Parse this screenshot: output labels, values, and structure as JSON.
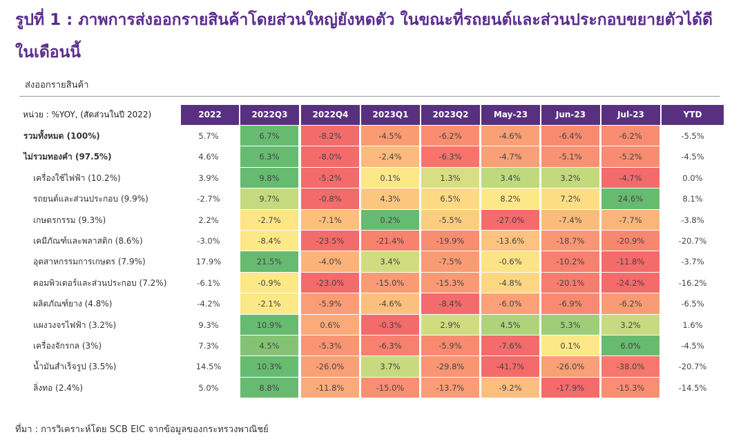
{
  "title": "รูปที่ 1 : ภาพการส่งออกรายสินค้าโดยส่วนใหญ่ยังหดตัว ในขณะที่รถยนต์และส่วนประกอบขยายตัวได้ดีในเดือนนี้",
  "subtitle": "ส่งออกรายสินค้า",
  "unit_label": "หน่วย : %YOY, (สัดส่วนในปี 2022)",
  "columns": [
    "2022",
    "2022Q3",
    "2022Q4",
    "2023Q1",
    "2023Q2",
    "May-23",
    "Jun-23",
    "Jul-23",
    "YTD"
  ],
  "rows": [
    {
      "label": "รวมทั้งหมด (100%)",
      "bold": true,
      "v2022": "5.7%",
      "cells": [
        "6.7%",
        "-8.2%",
        "-4.5%",
        "-6.2%",
        "-4.6%",
        "-6.4%",
        "-6.2%"
      ],
      "colors": [
        "#67bb71",
        "#f46b6b",
        "#fa9b74",
        "#fa8c70",
        "#f9a076",
        "#f88a70",
        "#f88d71"
      ],
      "ytd": "-5.5%"
    },
    {
      "label": "ไม่รวมทองคำ (97.5%)",
      "bold": true,
      "v2022": "4.6%",
      "cells": [
        "6.3%",
        "-8.0%",
        "-2.4%",
        "-6.3%",
        "-4.7%",
        "-5.1%",
        "-5.2%"
      ],
      "colors": [
        "#67bb71",
        "#f46b6b",
        "#fcbb7d",
        "#f8736c",
        "#f9a076",
        "#f89272",
        "#f88c70"
      ],
      "ytd": "-4.5%"
    },
    {
      "label": "เครื่องใช้ไฟฟ้า (10.2%)",
      "bold": false,
      "v2022": "3.9%",
      "cells": [
        "9.8%",
        "-5.2%",
        "0.1%",
        "1.3%",
        "3.4%",
        "3.2%",
        "-4.7%"
      ],
      "colors": [
        "#67bb71",
        "#f46b6b",
        "#fde887",
        "#d8de83",
        "#bfd97e",
        "#c3d97e",
        "#f46b6b"
      ],
      "ytd": "0.0%"
    },
    {
      "label": "รถยนต์และส่วนประกอบ (9.9%)",
      "bold": false,
      "v2022": "-2.7%",
      "cells": [
        "9.7%",
        "-0.8%",
        "4.3%",
        "6.5%",
        "8.2%",
        "7.2%",
        "24.6%"
      ],
      "colors": [
        "#c5da7f",
        "#f46b6b",
        "#fbc77f",
        "#fdd983",
        "#fde887",
        "#fddd84",
        "#67bb71"
      ],
      "ytd": "8.1%"
    },
    {
      "label": "เกษตรกรรม (9.3%)",
      "bold": false,
      "v2022": "2.2%",
      "cells": [
        "-2.7%",
        "-7.1%",
        "0.2%",
        "-5.5%",
        "-27.0%",
        "-7.4%",
        "-7.7%"
      ],
      "colors": [
        "#fde587",
        "#fcbf7d",
        "#67bb71",
        "#fccc80",
        "#f46b6b",
        "#fbbb7c",
        "#fbb57b"
      ],
      "ytd": "-3.8%"
    },
    {
      "label": "เคมีภัณฑ์และพลาสติก (8.6%)",
      "bold": false,
      "v2022": "-3.0%",
      "cells": [
        "-8.4%",
        "-23.5%",
        "-21.4%",
        "-19.9%",
        "-13.6%",
        "-18.7%",
        "-20.9%"
      ],
      "colors": [
        "#fde887",
        "#f46b6b",
        "#f7826e",
        "#f88d71",
        "#fcc37e",
        "#f99674",
        "#f8876f"
      ],
      "ytd": "-20.7%"
    },
    {
      "label": "อุตสาหกรรมการเกษตร (7.9%)",
      "bold": false,
      "v2022": "17.9%",
      "cells": [
        "21.5%",
        "-4.0%",
        "3.4%",
        "-7.5%",
        "-0.6%",
        "-10.2%",
        "-11.8%"
      ],
      "colors": [
        "#67bb71",
        "#fbb37a",
        "#d1dc81",
        "#f99c75",
        "#fde387",
        "#f7806e",
        "#f46b6b"
      ],
      "ytd": "-3.7%"
    },
    {
      "label": "คอมพิวเตอร์และส่วนประกอบ (7.2%)",
      "bold": false,
      "v2022": "-6.1%",
      "cells": [
        "-0.9%",
        "-23.0%",
        "-15.0%",
        "-15.3%",
        "-4.8%",
        "-20.1%",
        "-24.2%"
      ],
      "colors": [
        "#fde887",
        "#f46b6b",
        "#f99b75",
        "#f99a75",
        "#fcd782",
        "#f77d6e",
        "#f46b6b"
      ],
      "ytd": "-16.2%"
    },
    {
      "label": "ผลิตภัณฑ์ยาง (4.8%)",
      "bold": false,
      "v2022": "-4.2%",
      "cells": [
        "-2.1%",
        "-5.9%",
        "-4.6%",
        "-8.4%",
        "-6.0%",
        "-6.9%",
        "-6.2%"
      ],
      "colors": [
        "#fde887",
        "#fa9c75",
        "#fbc07d",
        "#f46b6b",
        "#fba077",
        "#f98a71",
        "#f99b75"
      ],
      "ytd": "-6.5%"
    },
    {
      "label": "แผงวงจรไฟฟ้า (3.2%)",
      "bold": false,
      "v2022": "9.3%",
      "cells": [
        "10.9%",
        "0.6%",
        "-0.3%",
        "2.9%",
        "4.5%",
        "5.3%",
        "3.2%"
      ],
      "colors": [
        "#67bb71",
        "#fcaa79",
        "#f46b6b",
        "#d1dc81",
        "#aed47b",
        "#9ecf78",
        "#c8da7f"
      ],
      "ytd": "1.6%"
    },
    {
      "label": "เครื่องจักรกล (3%)",
      "bold": false,
      "v2022": "7.3%",
      "cells": [
        "4.5%",
        "-5.3%",
        "-6.3%",
        "-5.9%",
        "-7.6%",
        "0.1%",
        "6.0%"
      ],
      "colors": [
        "#84c374",
        "#f99573",
        "#f7806e",
        "#f88a70",
        "#f46b6b",
        "#fde887",
        "#67bb71"
      ],
      "ytd": "-4.5%"
    },
    {
      "label": "น้ำมันสำเร็จรูป (3.5%)",
      "bold": false,
      "v2022": "14.5%",
      "cells": [
        "10.3%",
        "-26.0%",
        "3.7%",
        "-29.8%",
        "-41.7%",
        "-26.0%",
        "-38.0%"
      ],
      "colors": [
        "#67bb71",
        "#f9a076",
        "#c8da7f",
        "#f99573",
        "#f46b6b",
        "#f9a076",
        "#f6776d"
      ],
      "ytd": "-20.7%"
    },
    {
      "label": "ลิ่งทอ (2.4%)",
      "bold": false,
      "v2022": "5.0%",
      "cells": [
        "8.8%",
        "-11.8%",
        "-15.0%",
        "-13.7%",
        "-9.2%",
        "-17.9%",
        "-15.3%"
      ],
      "colors": [
        "#67bb71",
        "#fbaa79",
        "#f98f72",
        "#fa9c75",
        "#fcbf7d",
        "#f46b6b",
        "#f98e72"
      ],
      "ytd": "-14.5%"
    }
  ],
  "source": "ที่มา : การวิเคราะห์โดย SCB EIC จากข้อมูลของกระทรวงพาณิชย์"
}
